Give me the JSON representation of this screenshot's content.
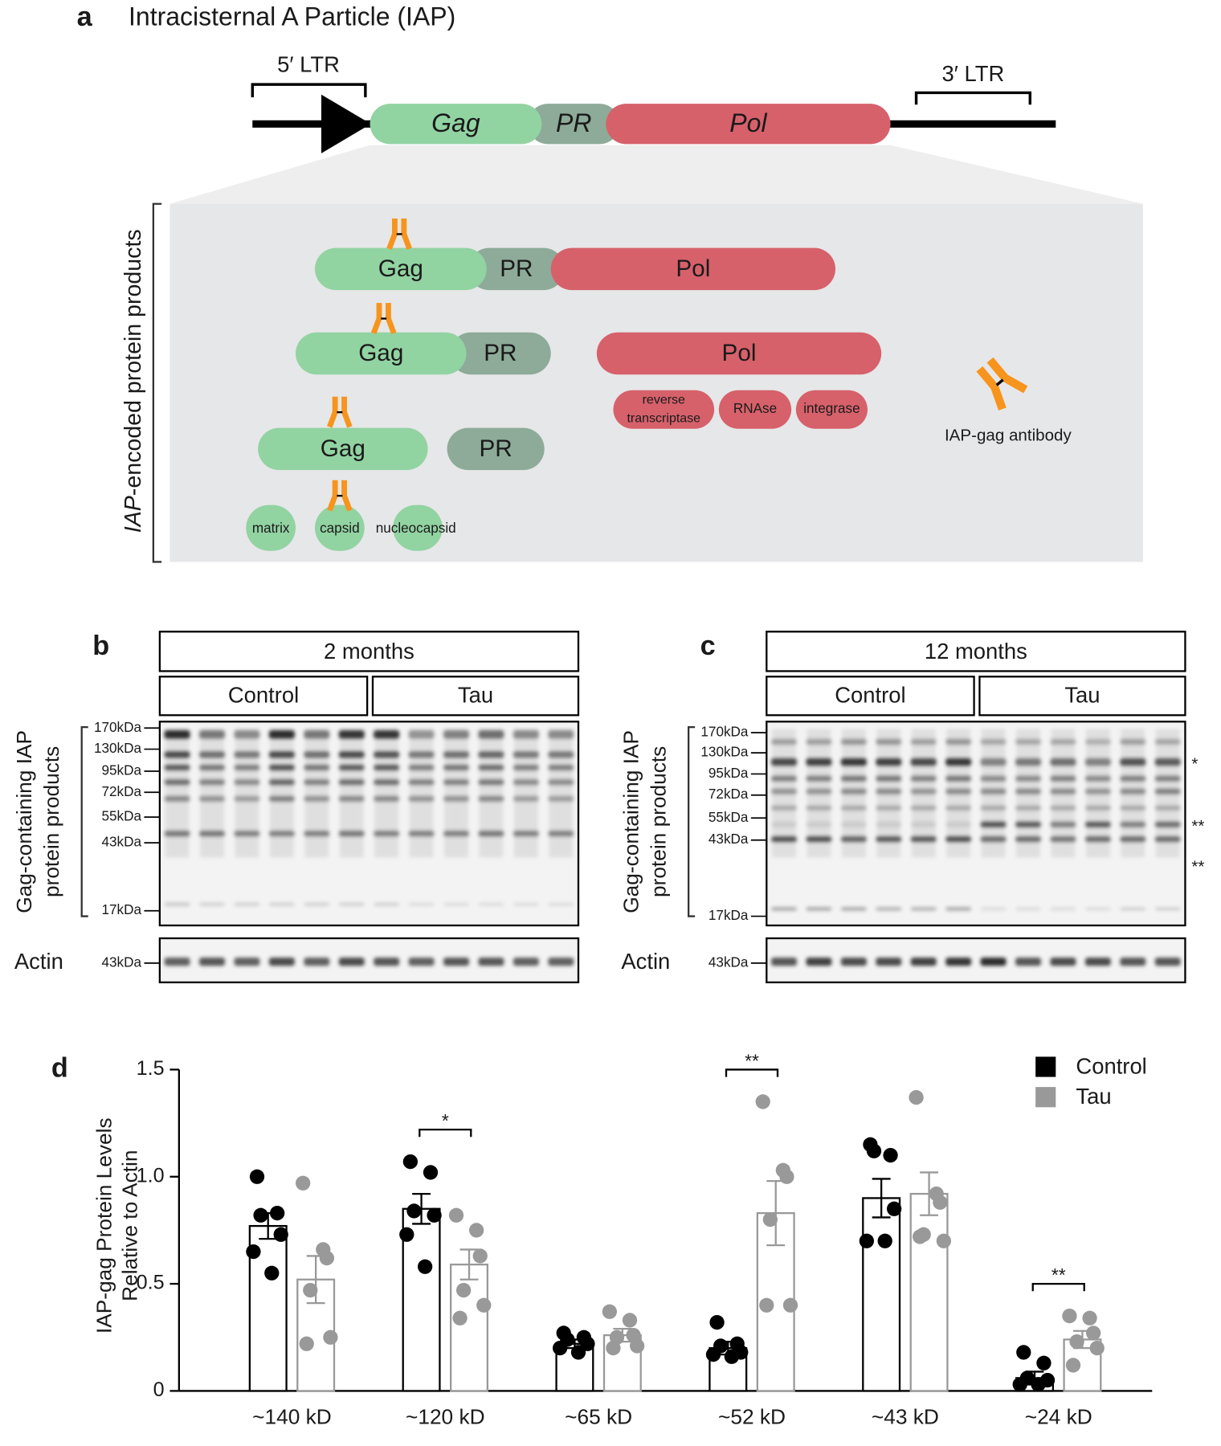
{
  "panel_a": {
    "label": "a",
    "title": "Intracisternal A Particle (IAP)",
    "ltr5": "5′ LTR",
    "ltr3": "3′ LTR",
    "genome": [
      "Gag",
      "PR",
      "Pol"
    ],
    "side_label": {
      "italic": "IAP",
      "rest": "-encoded protein products"
    },
    "rows": [
      [
        "Gag",
        "PR",
        "Pol"
      ],
      [
        "Gag",
        "PR",
        "Pol"
      ],
      [
        "Gag",
        "PR"
      ]
    ],
    "pol_products": [
      [
        "reverse",
        "transcriptase"
      ],
      "RNAse",
      "integrase"
    ],
    "gag_products": [
      "matrix",
      "capsid",
      "nucleocapsid"
    ],
    "antibody_legend": "IAP-gag antibody"
  },
  "panel_b": {
    "label": "b",
    "age": "2 months",
    "groups": [
      "Control",
      "Tau"
    ],
    "ylabel": [
      "Gag-containing IAP",
      "protein products"
    ],
    "ladder": [
      "170kDa",
      "130kDa",
      "95kDa",
      "72kDa",
      "55kDa",
      "43kDa",
      "17kDa"
    ],
    "actin": "Actin",
    "actin_ladder": "43kDa"
  },
  "panel_c": {
    "label": "c",
    "age": "12 months",
    "groups": [
      "Control",
      "Tau"
    ],
    "ylabel": [
      "Gag-containing IAP",
      "protein products"
    ],
    "ladder": [
      "170kDa",
      "130kDa",
      "95kDa",
      "72kDa",
      "55kDa",
      "43kDa",
      "17kDa"
    ],
    "actin": "Actin",
    "actin_ladder": "43kDa",
    "asterisks": [
      "*",
      "**",
      "**"
    ]
  },
  "chart_data": {
    "type": "bar",
    "label": "d",
    "ylabel": [
      "IAP-gag  Protein Levels",
      "Relative to Actin"
    ],
    "categories": [
      "~140 kD",
      "~120 kD",
      "~65 kD",
      "~52 kD",
      "~43 kD",
      "~24 kD"
    ],
    "series": [
      {
        "name": "Control",
        "color": "#000000",
        "values": [
          0.77,
          0.85,
          0.22,
          0.2,
          0.9,
          0.06
        ],
        "errors": [
          0.06,
          0.07,
          0.02,
          0.03,
          0.09,
          0.03
        ],
        "points": [
          [
            1.0,
            0.83,
            0.82,
            0.73,
            0.65,
            0.55
          ],
          [
            1.07,
            1.02,
            0.84,
            0.82,
            0.73,
            0.58
          ],
          [
            0.27,
            0.25,
            0.24,
            0.22,
            0.2,
            0.18
          ],
          [
            0.32,
            0.22,
            0.21,
            0.18,
            0.17,
            0.16
          ],
          [
            1.15,
            1.1,
            1.12,
            0.85,
            0.7,
            0.7
          ],
          [
            0.18,
            0.13,
            0.06,
            0.05,
            0.03,
            0.03
          ]
        ]
      },
      {
        "name": "Tau",
        "color": "#999999",
        "values": [
          0.52,
          0.59,
          0.26,
          0.83,
          0.92,
          0.24
        ],
        "errors": [
          0.11,
          0.07,
          0.03,
          0.15,
          0.1,
          0.04
        ],
        "points": [
          [
            0.97,
            0.66,
            0.62,
            0.47,
            0.25,
            0.22
          ],
          [
            0.82,
            0.75,
            0.63,
            0.47,
            0.4,
            0.34
          ],
          [
            0.37,
            0.33,
            0.26,
            0.25,
            0.21,
            0.2
          ],
          [
            1.35,
            1.03,
            1.0,
            0.8,
            0.4,
            0.4
          ],
          [
            1.37,
            0.92,
            0.88,
            0.73,
            0.7,
            0.72
          ],
          [
            0.35,
            0.34,
            0.27,
            0.23,
            0.2,
            0.12
          ]
        ]
      }
    ],
    "ylim": [
      0,
      1.5
    ],
    "yticks": [
      0,
      0.5,
      {
        "value": 1,
        "label": "1.0"
      },
      1.5
    ],
    "annotations": [
      null,
      "*",
      null,
      "**",
      null,
      "**"
    ],
    "legend": "upper right"
  }
}
